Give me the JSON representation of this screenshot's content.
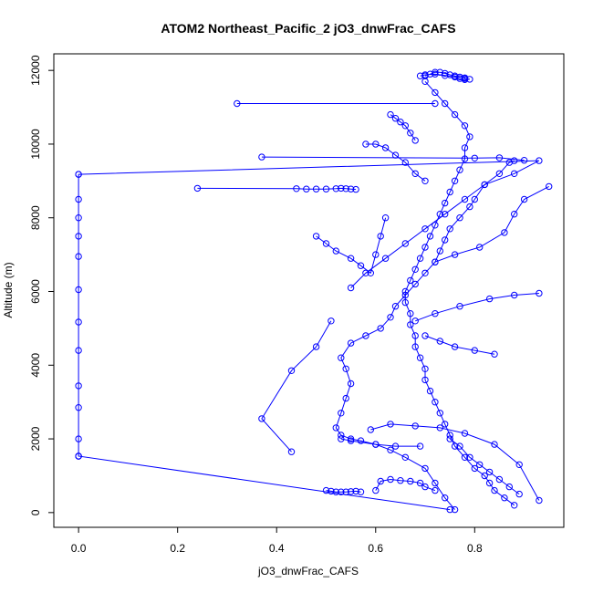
{
  "chart_data": {
    "type": "line",
    "title": "ATOM2 Northeast_Pacific_2 jO3_dnwFrac_CAFS",
    "xlabel": "jO3_dnwFrac_CAFS",
    "ylabel": "Altitude (m)",
    "xlim": [
      -0.05,
      0.98
    ],
    "ylim": [
      -400,
      12450
    ],
    "x_ticks": [
      0.0,
      0.2,
      0.4,
      0.6,
      0.8
    ],
    "x_tick_labels": [
      "0.0",
      "0.2",
      "0.4",
      "0.6",
      "0.8"
    ],
    "y_ticks": [
      0,
      2000,
      4000,
      6000,
      8000,
      10000,
      12000
    ],
    "y_tick_labels": [
      "0",
      "2000",
      "4000",
      "6000",
      "8000",
      "10000",
      "12000"
    ],
    "grid": false,
    "marker": "open-circle",
    "color": "#0000ff",
    "series": [
      {
        "x": [
          0.76,
          0.74,
          0.72,
          0.7,
          0.66,
          0.63,
          0.6,
          0.57,
          0.55,
          0.53,
          0.52,
          0.53,
          0.54,
          0.55,
          0.54,
          0.53,
          0.55,
          0.58,
          0.61,
          0.63,
          0.64,
          0.66,
          0.68,
          0.7,
          0.72,
          0.73,
          0.74,
          0.75,
          0.77,
          0.79,
          0.8,
          0.82,
          0.85,
          0.87,
          0.88
        ],
        "y": [
          80,
          400,
          800,
          1200,
          1500,
          1700,
          1850,
          1950,
          2000,
          2100,
          2300,
          2700,
          3100,
          3500,
          3900,
          4200,
          4600,
          4800,
          5000,
          5300,
          5600,
          5900,
          6200,
          6500,
          6800,
          7100,
          7400,
          7700,
          8000,
          8300,
          8500,
          8900,
          9200,
          9500,
          9550
        ]
      },
      {
        "x": [
          0.88,
          0.86,
          0.84,
          0.83,
          0.82,
          0.8,
          0.78,
          0.76,
          0.75,
          0.74,
          0.73,
          0.72,
          0.71,
          0.7,
          0.7,
          0.69,
          0.68,
          0.68,
          0.67,
          0.67,
          0.66,
          0.66,
          0.67,
          0.68,
          0.69,
          0.7,
          0.71,
          0.72,
          0.73,
          0.74,
          0.75,
          0.76,
          0.77,
          0.78,
          0.78,
          0.79,
          0.78,
          0.76,
          0.74,
          0.72,
          0.7
        ],
        "y": [
          200,
          400,
          600,
          800,
          1000,
          1200,
          1500,
          1800,
          2100,
          2400,
          2700,
          3000,
          3300,
          3600,
          3900,
          4200,
          4500,
          4800,
          5100,
          5400,
          5700,
          6000,
          6300,
          6600,
          6900,
          7200,
          7500,
          7800,
          8100,
          8400,
          8700,
          9000,
          9300,
          9600,
          9900,
          10200,
          10500,
          10800,
          11100,
          11400,
          11700
        ]
      },
      {
        "x": [
          0.7,
          0.71,
          0.72,
          0.73,
          0.74,
          0.75,
          0.76,
          0.77,
          0.78,
          0.78,
          0.79,
          0.78,
          0.77,
          0.76,
          0.74,
          0.72,
          0.7,
          0.69
        ],
        "y": [
          11850,
          11900,
          11950,
          11950,
          11920,
          11880,
          11850,
          11820,
          11800,
          11780,
          11760,
          11750,
          11780,
          11820,
          11860,
          11900,
          11880,
          11850
        ]
      },
      {
        "x": [
          0.0,
          0.0,
          0.0,
          0.0,
          0.0,
          0.0,
          0.0,
          0.0,
          0.0,
          0.0,
          0.0,
          0.0,
          0.0,
          0.0,
          0.75
        ],
        "y": [
          9180,
          8500,
          8000,
          7500,
          6950,
          6050,
          5170,
          4400,
          3440,
          2850,
          2000,
          1530,
          1530,
          1530,
          80
        ]
      },
      {
        "x": [
          0.0,
          0.93,
          0.88,
          0.82,
          0.78,
          0.74,
          0.7,
          0.66,
          0.62,
          0.58,
          0.55
        ],
        "y": [
          9180,
          9550,
          9200,
          8900,
          8500,
          8100,
          7700,
          7300,
          6900,
          6500,
          6100
        ]
      },
      {
        "x": [
          0.24,
          0.44,
          0.46,
          0.48,
          0.5,
          0.52,
          0.53,
          0.54,
          0.55,
          0.56
        ],
        "y": [
          8800,
          8790,
          8780,
          8780,
          8780,
          8790,
          8800,
          8790,
          8780,
          8770
        ]
      },
      {
        "x": [
          0.32,
          0.72
        ],
        "y": [
          11100,
          11100
        ]
      },
      {
        "x": [
          0.37,
          0.8,
          0.85,
          0.9
        ],
        "y": [
          9650,
          9620,
          9630,
          9560
        ]
      },
      {
        "x": [
          0.53,
          0.55,
          0.6,
          0.64,
          0.69
        ],
        "y": [
          2000,
          1950,
          1850,
          1800,
          1800
        ]
      },
      {
        "x": [
          0.59,
          0.63,
          0.68,
          0.73,
          0.78,
          0.84,
          0.89,
          0.93
        ],
        "y": [
          2250,
          2400,
          2350,
          2300,
          2150,
          1850,
          1300,
          330
        ]
      },
      {
        "x": [
          0.43,
          0.37,
          0.43,
          0.48,
          0.51
        ],
        "y": [
          1650,
          2550,
          3850,
          4500,
          5200
        ]
      },
      {
        "x": [
          0.5,
          0.51,
          0.52,
          0.53,
          0.54,
          0.55,
          0.56,
          0.57
        ],
        "y": [
          600,
          580,
          560,
          560,
          560,
          570,
          580,
          560
        ]
      },
      {
        "x": [
          0.68,
          0.72,
          0.77,
          0.83,
          0.88,
          0.93
        ],
        "y": [
          5200,
          5400,
          5600,
          5800,
          5900,
          5950
        ]
      },
      {
        "x": [
          0.7,
          0.73,
          0.76,
          0.8,
          0.84
        ],
        "y": [
          4800,
          4650,
          4500,
          4400,
          4300
        ]
      },
      {
        "x": [
          0.72,
          0.76,
          0.81,
          0.86,
          0.88,
          0.9,
          0.95
        ],
        "y": [
          6800,
          7000,
          7200,
          7600,
          8100,
          8500,
          8850
        ]
      },
      {
        "x": [
          0.48,
          0.5,
          0.52,
          0.55,
          0.57,
          0.59,
          0.6,
          0.61,
          0.62
        ],
        "y": [
          7500,
          7300,
          7100,
          6900,
          6700,
          6500,
          7000,
          7500,
          8000
        ]
      },
      {
        "x": [
          0.58,
          0.6,
          0.62,
          0.64,
          0.66,
          0.68,
          0.7
        ],
        "y": [
          10000,
          10000,
          9900,
          9700,
          9500,
          9200,
          9000
        ]
      },
      {
        "x": [
          0.63,
          0.64,
          0.65,
          0.66,
          0.67,
          0.68
        ],
        "y": [
          10800,
          10700,
          10600,
          10500,
          10300,
          10100
        ]
      },
      {
        "x": [
          0.6,
          0.61,
          0.63,
          0.65,
          0.67,
          0.69,
          0.7,
          0.72
        ],
        "y": [
          600,
          850,
          900,
          870,
          850,
          800,
          700,
          600
        ]
      },
      {
        "x": [
          0.75,
          0.77,
          0.79,
          0.81,
          0.83,
          0.85,
          0.87,
          0.89
        ],
        "y": [
          2000,
          1800,
          1500,
          1300,
          1100,
          900,
          700,
          500
        ]
      }
    ]
  }
}
